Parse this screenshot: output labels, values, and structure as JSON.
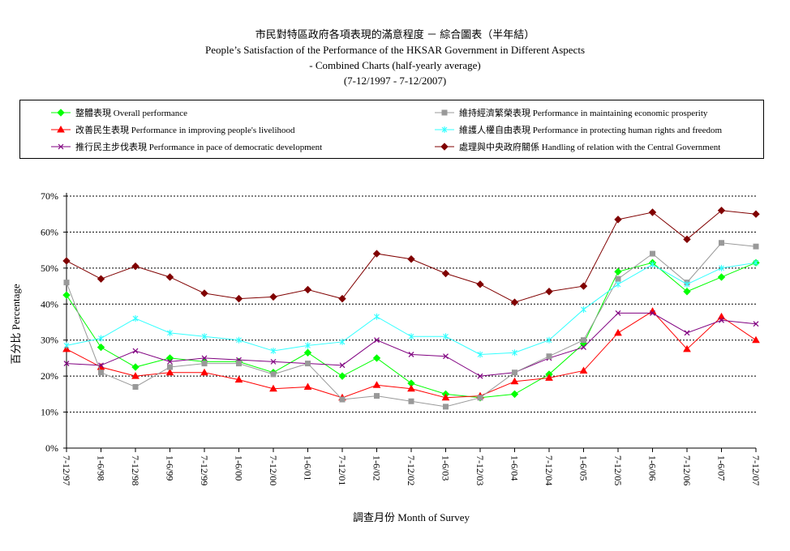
{
  "titles": {
    "line1": "市民對特區政府各項表現的滿意程度 － 綜合圖表（半年結）",
    "line2": "People’s Satisfaction of the Performance of the HKSAR Government in Different Aspects",
    "line3": "- Combined Charts  (half-yearly average)",
    "line4": "(7-12/1997 - 7-12/2007)"
  },
  "chart_data": {
    "type": "line",
    "xlabel": "調查月份 Month of Survey",
    "ylabel": "百分比 Percentage",
    "ylim": [
      0,
      70
    ],
    "yticks": [
      "0%",
      "10%",
      "20%",
      "30%",
      "40%",
      "50%",
      "60%",
      "70%"
    ],
    "grid": "horizontal-dashed",
    "legend_position": "top",
    "categories": [
      "7-12/97",
      "1-6/98",
      "7-12/98",
      "1-6/99",
      "7-12/99",
      "1-6/00",
      "7-12/00",
      "1-6/01",
      "7-12/01",
      "1-6/02",
      "7-12/02",
      "1-6/03",
      "7-12/03",
      "1-6/04",
      "7-12/04",
      "1-6/05",
      "7-12/05",
      "1-6/06",
      "7-12/06",
      "1-6/07",
      "7-12/07"
    ],
    "series": [
      {
        "name": "整體表現 Overall performance",
        "color": "#00ff00",
        "marker": "diamond",
        "values": [
          42.5,
          28.0,
          22.5,
          25.0,
          24.0,
          24.0,
          21.0,
          26.5,
          20.0,
          25.0,
          18.0,
          15.0,
          14.0,
          15.0,
          20.5,
          29.0,
          49.0,
          51.5,
          43.5,
          47.5,
          51.5
        ]
      },
      {
        "name": "改善民生表現 Performance in improving people's livelihood",
        "color": "#ff0000",
        "marker": "triangle",
        "values": [
          27.5,
          22.5,
          20.0,
          21.0,
          21.0,
          19.0,
          16.5,
          17.0,
          14.0,
          17.5,
          16.5,
          14.0,
          14.5,
          18.5,
          19.5,
          21.5,
          32.0,
          38.0,
          27.5,
          36.5,
          30.0
        ]
      },
      {
        "name": "推行民主步伐表現 Performance in pace of democratic development",
        "color": "#800080",
        "marker": "x",
        "values": [
          23.5,
          23.0,
          27.0,
          24.0,
          25.0,
          24.5,
          24.0,
          23.5,
          23.0,
          30.0,
          26.0,
          25.5,
          20.0,
          21.0,
          25.0,
          28.0,
          37.5,
          37.5,
          32.0,
          35.5,
          34.5
        ]
      },
      {
        "name": "維持經濟繁榮表現 Performance in maintaining economic prosperity",
        "color": "#999999",
        "marker": "square",
        "values": [
          46.0,
          21.0,
          17.0,
          22.5,
          23.5,
          23.5,
          20.5,
          23.5,
          13.5,
          14.5,
          13.0,
          11.5,
          14.0,
          21.0,
          25.5,
          30.0,
          47.0,
          54.0,
          46.0,
          57.0,
          56.0
        ]
      },
      {
        "name": "維護人權自由表現 Performance in protecting human rights and freedom",
        "color": "#33ffff",
        "marker": "star",
        "values": [
          28.5,
          30.5,
          36.0,
          32.0,
          31.0,
          30.0,
          27.0,
          28.5,
          29.5,
          36.5,
          31.0,
          31.0,
          26.0,
          26.5,
          30.0,
          38.5,
          45.5,
          51.0,
          45.5,
          50.0,
          51.5
        ]
      },
      {
        "name": "處理與中央政府關係 Handling of relation with the Central Government",
        "color": "#800000",
        "marker": "diamond",
        "values": [
          52.0,
          47.0,
          50.5,
          47.5,
          43.0,
          41.5,
          42.0,
          44.0,
          41.5,
          54.0,
          52.5,
          48.5,
          45.5,
          40.5,
          43.5,
          45.0,
          63.5,
          65.5,
          58.0,
          66.0,
          65.0
        ]
      }
    ]
  }
}
